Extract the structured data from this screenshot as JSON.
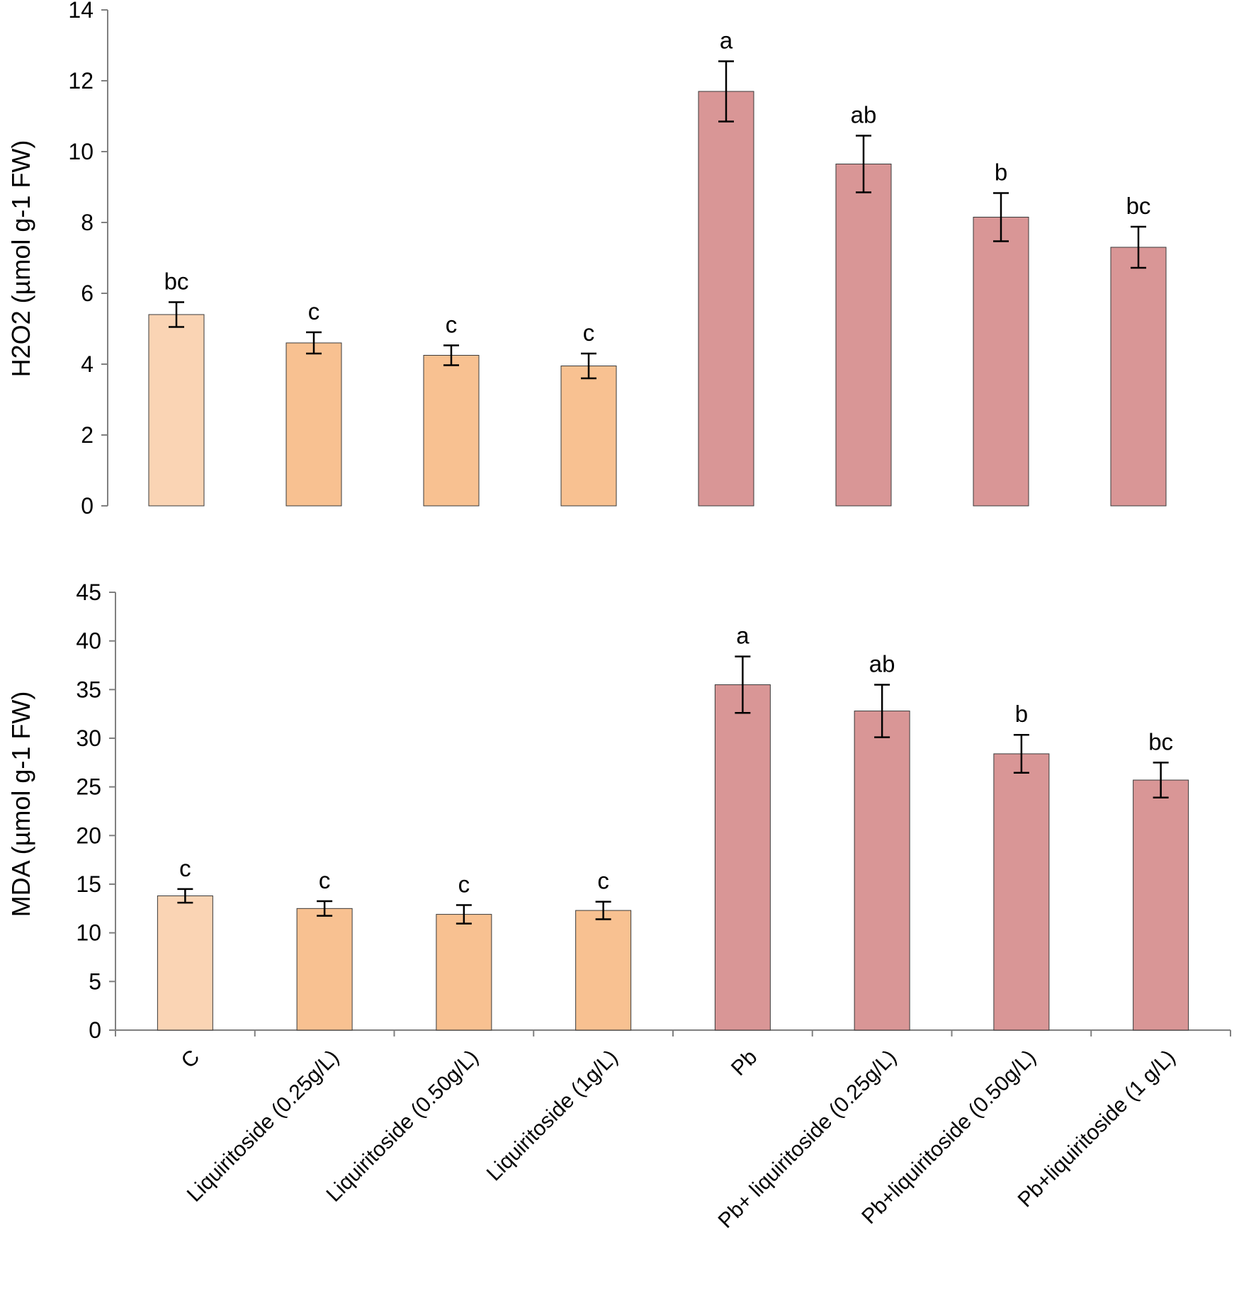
{
  "chart_data": [
    {
      "type": "bar",
      "title": "",
      "xlabel": "",
      "ylabel": "H2O2 (µmol g-1 FW)",
      "ylim": [
        0,
        14
      ],
      "yticks": [
        0,
        2,
        4,
        6,
        8,
        10,
        12,
        14
      ],
      "categories": [
        "C",
        "Liquiritoside (0.25g/L)",
        "Liquiritoside (0.50g/L)",
        "Liquiritoside (1g/L)",
        "Pb",
        "Pb+ liquiritoside (0.25g/L)",
        "Pb+liquiritoside (0.50g/L)",
        "Pb+liquiritoside (1 g/L)"
      ],
      "values": [
        5.4,
        4.6,
        4.25,
        3.95,
        11.7,
        9.65,
        8.15,
        7.3
      ],
      "errors": [
        0.35,
        0.3,
        0.28,
        0.35,
        0.85,
        0.8,
        0.68,
        0.58
      ],
      "significance": [
        "bc",
        "c",
        "c",
        "c",
        "a",
        "ab",
        "b",
        "bc"
      ],
      "colors": [
        "#FAD4B4",
        "#F8C191",
        "#F8C191",
        "#F8C191",
        "#D99696",
        "#D99696",
        "#D99696",
        "#D99696"
      ],
      "grid": false
    },
    {
      "type": "bar",
      "title": "",
      "xlabel": "",
      "ylabel": "MDA (µmol g-1 FW)",
      "ylim": [
        0,
        45
      ],
      "yticks": [
        0,
        5,
        10,
        15,
        20,
        25,
        30,
        35,
        40,
        45
      ],
      "categories": [
        "C",
        "Liquiritoside (0.25g/L)",
        "Liquiritoside (0.50g/L)",
        "Liquiritoside (1g/L)",
        "Pb",
        "Pb+ liquiritoside (0.25g/L)",
        "Pb+liquiritoside (0.50g/L)",
        "Pb+liquiritoside (1 g/L)"
      ],
      "values": [
        13.8,
        12.5,
        11.9,
        12.3,
        35.5,
        32.8,
        28.4,
        25.7
      ],
      "errors": [
        0.7,
        0.75,
        0.95,
        0.9,
        2.9,
        2.7,
        1.95,
        1.8
      ],
      "significance": [
        "c",
        "c",
        "c",
        "c",
        "a",
        "ab",
        "b",
        "bc"
      ],
      "colors": [
        "#FAD4B4",
        "#F8C191",
        "#F8C191",
        "#F8C191",
        "#D99696",
        "#D99696",
        "#D99696",
        "#D99696"
      ],
      "grid": false
    }
  ]
}
